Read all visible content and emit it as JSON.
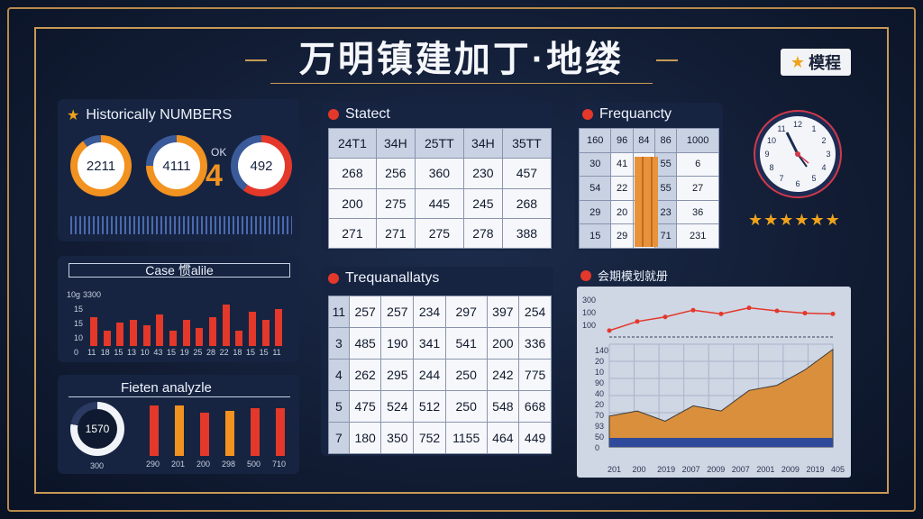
{
  "title": "万明镇建加丁·地缕",
  "badge": {
    "label": "模程"
  },
  "historic": {
    "title": "Historically NUMBERS",
    "rings": [
      {
        "value": "2211",
        "ring_color": "#f29220",
        "level": 0.9
      },
      {
        "value": "4111",
        "ring_color": "#f29220",
        "level": 0.75
      },
      {
        "value": "492",
        "ring_color": "#e3382a",
        "level": 0.6
      }
    ],
    "ok_label": "OK",
    "big_number": "4"
  },
  "case": {
    "title": "Case 惯alile",
    "y_ticks": [
      "3300",
      "15",
      "15",
      "10",
      "0"
    ],
    "y_top_prefix": "10g",
    "x_ticks": [
      "11",
      "18",
      "15",
      "13",
      "10",
      "43",
      "15",
      "19",
      "25",
      "28",
      "22",
      "18",
      "15",
      "15",
      "11"
    ],
    "bars": [
      0.55,
      0.3,
      0.45,
      0.5,
      0.4,
      0.6,
      0.3,
      0.5,
      0.35,
      0.55,
      0.8,
      0.3,
      0.65,
      0.5,
      0.7
    ]
  },
  "fieten": {
    "title": "Fieten analyzle",
    "donut_value": "1570",
    "donut_caption": "300",
    "bars": [
      {
        "color": "#e3382a",
        "level": 0.9,
        "label": "290"
      },
      {
        "color": "#f29220",
        "level": 0.9,
        "label": "201"
      },
      {
        "color": "#e3382a",
        "level": 0.78,
        "label": "200"
      },
      {
        "color": "#f29220",
        "level": 0.8,
        "label": "298"
      },
      {
        "color": "#e3382a",
        "level": 0.85,
        "label": "500"
      },
      {
        "color": "#e3382a",
        "level": 0.85,
        "label": "710"
      }
    ]
  },
  "statect": {
    "title": "Statect",
    "header": [
      "24T1",
      "34H",
      "25TT",
      "34H",
      "35TT"
    ],
    "rows": [
      [
        "268",
        "256",
        "360",
        "230",
        "457"
      ],
      [
        "200",
        "275",
        "445",
        "245",
        "268"
      ],
      [
        "271",
        "271",
        "275",
        "278",
        "388"
      ]
    ]
  },
  "trequ": {
    "title": "Trequanallatys",
    "rows": [
      [
        "11",
        "257",
        "257",
        "234",
        "297",
        "397",
        "254"
      ],
      [
        "3",
        "485",
        "190",
        "341",
        "541",
        "200",
        "336"
      ],
      [
        "4",
        "262",
        "295",
        "244",
        "250",
        "242",
        "775"
      ],
      [
        "5",
        "475",
        "524",
        "512",
        "250",
        "548",
        "668"
      ],
      [
        "7",
        "180",
        "350",
        "752",
        "1155",
        "464",
        "449"
      ]
    ]
  },
  "frequency": {
    "title": "Frequancty",
    "rows": [
      [
        "160",
        "96",
        "84",
        "86",
        "1000"
      ],
      [
        "30",
        "41",
        "",
        "55",
        "6"
      ],
      [
        "54",
        "22",
        "",
        "55",
        "27"
      ],
      [
        "29",
        "20",
        "",
        "23",
        "36"
      ],
      [
        "15",
        "29",
        "",
        "71",
        "231"
      ]
    ]
  },
  "rating": {
    "stars": "★★★★★★"
  },
  "area": {
    "title": "会期模划就册",
    "y_top_ticks": [
      "300",
      "100",
      "100"
    ],
    "y_bottom_ticks": [
      "140",
      "20",
      "10",
      "90",
      "40",
      "20",
      "70",
      "93",
      "50",
      "0"
    ],
    "x_ticks": [
      "201",
      "200",
      "2019",
      "2007",
      "2009",
      "2007",
      "2001",
      "2009",
      "2019",
      "405"
    ],
    "line": [
      18,
      30,
      36,
      45,
      40,
      48,
      44,
      41,
      40
    ],
    "area": [
      0.3,
      0.35,
      0.25,
      0.4,
      0.35,
      0.55,
      0.6,
      0.75,
      0.95
    ]
  }
}
